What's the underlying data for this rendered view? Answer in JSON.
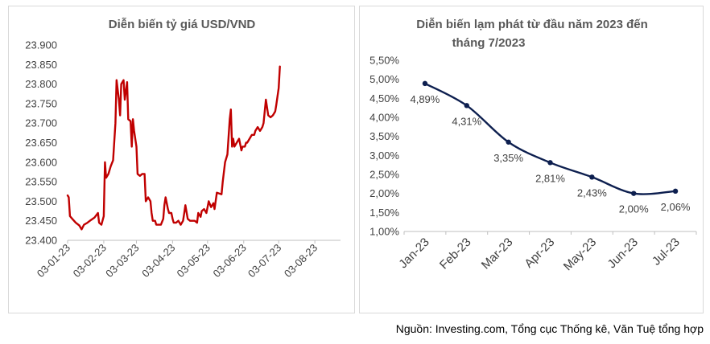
{
  "source": "Nguồn: Investing.com, Tổng cục Thống kê, Văn Tuệ tổng hợp",
  "chart_data": [
    {
      "type": "line",
      "title": "Diễn biến tỷ giá USD/VND",
      "ylim": [
        23400,
        23900
      ],
      "y_ticks": [
        "23.400",
        "23.450",
        "23.500",
        "23.550",
        "23.600",
        "23.650",
        "23.700",
        "23.750",
        "23.800",
        "23.850",
        "23.900"
      ],
      "x_ticks": [
        "03-01-23",
        "03-02-23",
        "03-03-23",
        "03-04-23",
        "03-05-23",
        "03-06-23",
        "03-07-23",
        "03-08-23"
      ],
      "x_range_days": [
        0,
        234
      ],
      "tick_days": [
        0,
        31,
        59,
        90,
        120,
        151,
        181,
        212
      ],
      "color": "#c00000",
      "series": [
        {
          "name": "USD/VND",
          "points": [
            [
              0,
              23515
            ],
            [
              1,
              23510
            ],
            [
              2,
              23462
            ],
            [
              4,
              23455
            ],
            [
              7,
              23445
            ],
            [
              10,
              23438
            ],
            [
              12,
              23428
            ],
            [
              14,
              23440
            ],
            [
              17,
              23445
            ],
            [
              20,
              23452
            ],
            [
              23,
              23458
            ],
            [
              26,
              23470
            ],
            [
              27,
              23445
            ],
            [
              29,
              23440
            ],
            [
              31,
              23462
            ],
            [
              32,
              23600
            ],
            [
              33,
              23560
            ],
            [
              35,
              23570
            ],
            [
              37,
              23590
            ],
            [
              39,
              23605
            ],
            [
              41,
              23700
            ],
            [
              42,
              23810
            ],
            [
              44,
              23760
            ],
            [
              45,
              23720
            ],
            [
              46,
              23800
            ],
            [
              48,
              23810
            ],
            [
              49,
              23760
            ],
            [
              51,
              23805
            ],
            [
              52,
              23710
            ],
            [
              54,
              23705
            ],
            [
              55,
              23640
            ],
            [
              56,
              23710
            ],
            [
              57,
              23680
            ],
            [
              59,
              23640
            ],
            [
              60,
              23570
            ],
            [
              62,
              23565
            ],
            [
              64,
              23570
            ],
            [
              66,
              23570
            ],
            [
              67,
              23500
            ],
            [
              69,
              23510
            ],
            [
              71,
              23500
            ],
            [
              72,
              23470
            ],
            [
              73,
              23450
            ],
            [
              75,
              23450
            ],
            [
              76,
              23440
            ],
            [
              78,
              23440
            ],
            [
              80,
              23440
            ],
            [
              82,
              23455
            ],
            [
              83,
              23490
            ],
            [
              84,
              23510
            ],
            [
              86,
              23480
            ],
            [
              87,
              23470
            ],
            [
              89,
              23470
            ],
            [
              90,
              23455
            ],
            [
              91,
              23445
            ],
            [
              93,
              23445
            ],
            [
              95,
              23450
            ],
            [
              97,
              23440
            ],
            [
              99,
              23450
            ],
            [
              100,
              23470
            ],
            [
              101,
              23490
            ],
            [
              103,
              23455
            ],
            [
              105,
              23450
            ],
            [
              107,
              23450
            ],
            [
              109,
              23450
            ],
            [
              111,
              23445
            ],
            [
              112,
              23470
            ],
            [
              114,
              23460
            ],
            [
              115,
              23475
            ],
            [
              117,
              23480
            ],
            [
              119,
              23470
            ],
            [
              121,
              23500
            ],
            [
              123,
              23485
            ],
            [
              125,
              23495
            ],
            [
              126,
              23480
            ],
            [
              128,
              23522
            ],
            [
              130,
              23520
            ],
            [
              132,
              23518
            ],
            [
              133,
              23550
            ],
            [
              135,
              23600
            ],
            [
              137,
              23620
            ],
            [
              139,
              23710
            ],
            [
              140,
              23735
            ],
            [
              141,
              23640
            ],
            [
              142,
              23660
            ],
            [
              143,
              23640
            ],
            [
              145,
              23650
            ],
            [
              147,
              23660
            ],
            [
              149,
              23630
            ],
            [
              150,
              23640
            ],
            [
              152,
              23640
            ],
            [
              153,
              23650
            ],
            [
              154,
              23650
            ],
            [
              156,
              23660
            ],
            [
              158,
              23670
            ],
            [
              160,
              23670
            ],
            [
              161,
              23680
            ],
            [
              163,
              23690
            ],
            [
              165,
              23680
            ],
            [
              167,
              23690
            ],
            [
              168,
              23700
            ],
            [
              170,
              23760
            ],
            [
              172,
              23720
            ],
            [
              174,
              23715
            ],
            [
              176,
              23720
            ],
            [
              178,
              23730
            ],
            [
              179,
              23748
            ],
            [
              181,
              23790
            ],
            [
              182,
              23845
            ]
          ]
        }
      ]
    },
    {
      "type": "line",
      "title_lines": [
        "Diễn biến lạm phát từ đầu năm 2023 đến",
        "tháng 7/2023"
      ],
      "ylim": [
        1.0,
        5.5
      ],
      "y_ticks": [
        "1,00%",
        "1,50%",
        "2,00%",
        "2,50%",
        "3,00%",
        "3,50%",
        "4,00%",
        "4,50%",
        "5,00%",
        "5,50%"
      ],
      "categories": [
        "Jan-23",
        "Feb-23",
        "Mar-23",
        "Apr-23",
        "May-23",
        "Jun-23",
        "Jul-23"
      ],
      "values": [
        4.89,
        4.31,
        3.35,
        2.81,
        2.43,
        2.0,
        2.06
      ],
      "data_labels": [
        "4,89%",
        "4,31%",
        "3,35%",
        "2,81%",
        "2,43%",
        "2,00%",
        "2,06%"
      ],
      "color": "#0d1f4f"
    }
  ]
}
